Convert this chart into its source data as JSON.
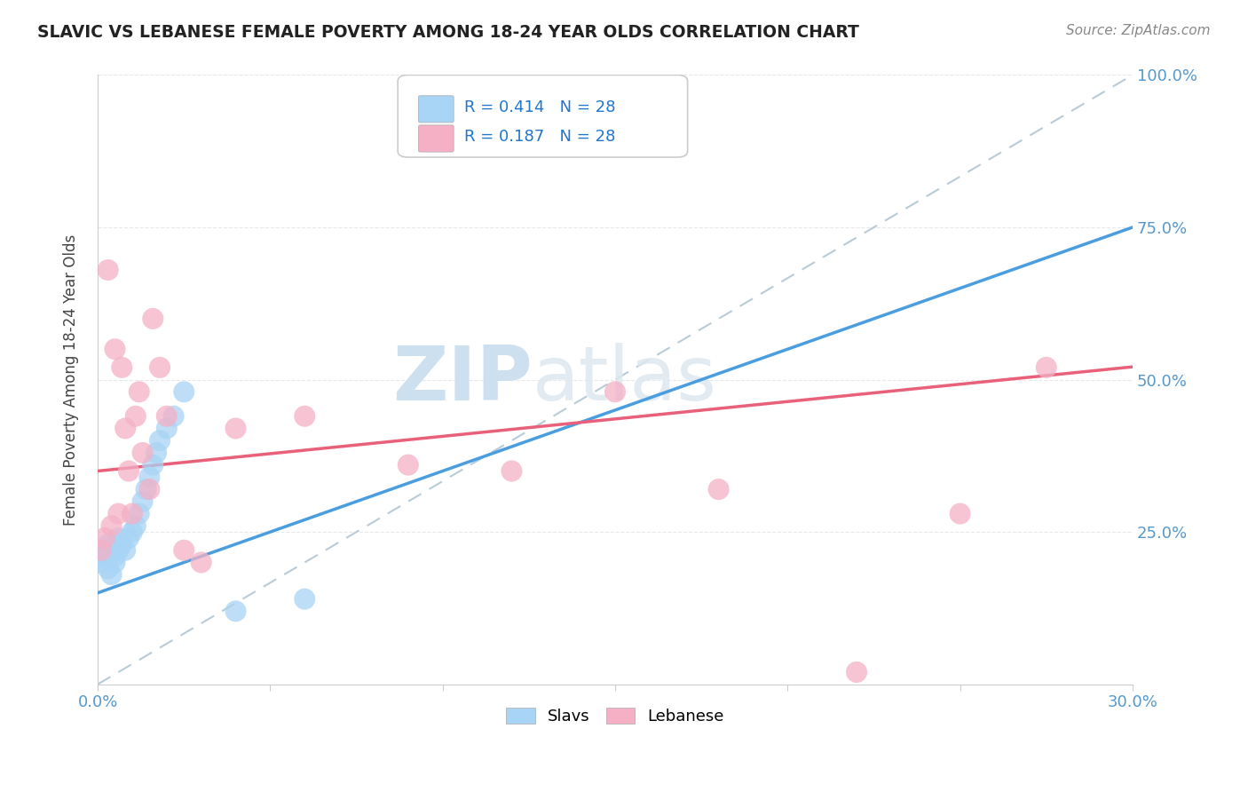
{
  "title": "SLAVIC VS LEBANESE FEMALE POVERTY AMONG 18-24 YEAR OLDS CORRELATION CHART",
  "source": "Source: ZipAtlas.com",
  "ylabel_label": "Female Poverty Among 18-24 Year Olds",
  "slavic_R": "0.414",
  "slavic_N": "28",
  "lebanese_R": "0.187",
  "lebanese_N": "28",
  "slavic_color": "#a8d4f5",
  "lebanese_color": "#f5b0c5",
  "slavic_line_color": "#4a9ee0",
  "lebanese_line_color": "#e8607a",
  "ref_line_color": "#b8ccd8",
  "watermark_zip": "ZIP",
  "watermark_atlas": "atlas",
  "watermark_color": "#cce0f0",
  "xlim": [
    0.0,
    0.3
  ],
  "ylim": [
    0.0,
    1.0
  ],
  "slavic_x": [
    0.001,
    0.002,
    0.002,
    0.003,
    0.003,
    0.004,
    0.004,
    0.005,
    0.005,
    0.006,
    0.006,
    0.007,
    0.008,
    0.009,
    0.01,
    0.011,
    0.012,
    0.013,
    0.014,
    0.015,
    0.016,
    0.017,
    0.018,
    0.02,
    0.022,
    0.025,
    0.04,
    0.06
  ],
  "slavic_y": [
    0.2,
    0.22,
    0.21,
    0.23,
    0.19,
    0.22,
    0.18,
    0.21,
    0.2,
    0.22,
    0.24,
    0.23,
    0.22,
    0.24,
    0.25,
    0.26,
    0.28,
    0.3,
    0.32,
    0.34,
    0.36,
    0.38,
    0.4,
    0.42,
    0.44,
    0.48,
    0.12,
    0.14
  ],
  "lebanese_x": [
    0.001,
    0.002,
    0.003,
    0.004,
    0.005,
    0.006,
    0.007,
    0.008,
    0.009,
    0.01,
    0.011,
    0.012,
    0.013,
    0.015,
    0.016,
    0.018,
    0.02,
    0.025,
    0.03,
    0.04,
    0.06,
    0.09,
    0.12,
    0.15,
    0.18,
    0.22,
    0.25,
    0.275
  ],
  "lebanese_y": [
    0.22,
    0.24,
    0.68,
    0.26,
    0.55,
    0.28,
    0.52,
    0.42,
    0.35,
    0.28,
    0.44,
    0.48,
    0.38,
    0.32,
    0.6,
    0.52,
    0.44,
    0.22,
    0.2,
    0.42,
    0.44,
    0.36,
    0.35,
    0.48,
    0.32,
    0.02,
    0.28,
    0.52
  ],
  "grid_color": "#e8e8e8",
  "spine_color": "#cccccc",
  "tick_color": "#5599cc",
  "title_color": "#222222",
  "source_color": "#888888",
  "ylabel_color": "#444444"
}
